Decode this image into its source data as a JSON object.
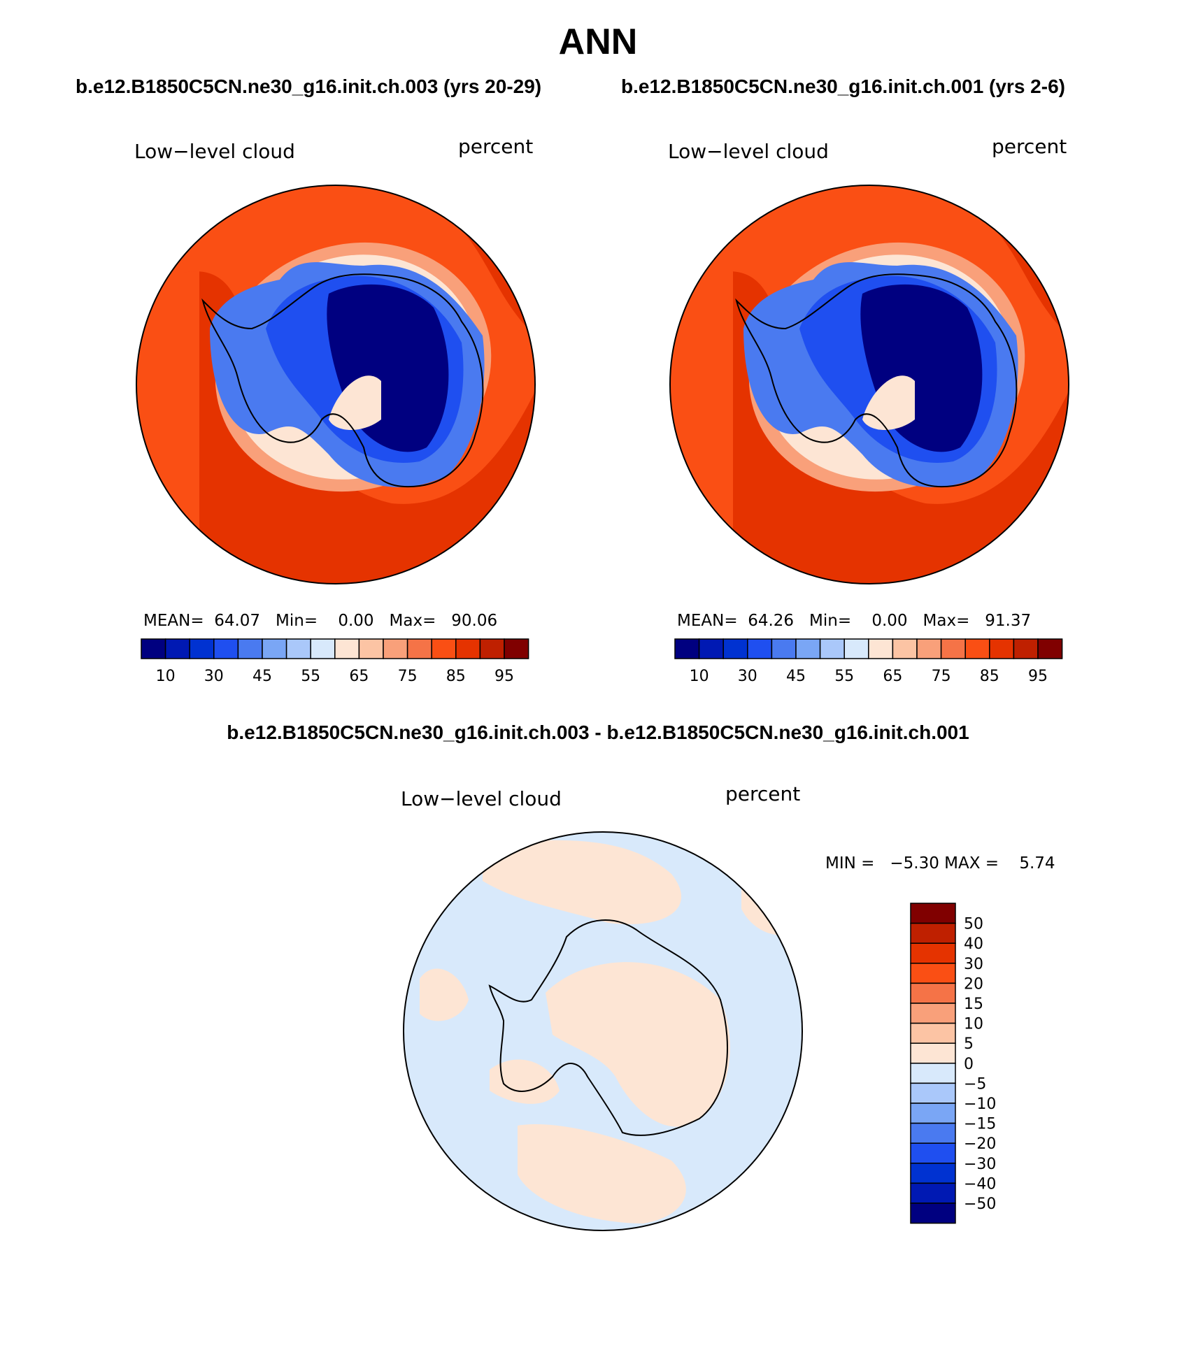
{
  "title": "ANN",
  "colors": {
    "abs_scale": [
      "#000080",
      "#0019b3",
      "#0032d1",
      "#1f4ff0",
      "#4a7af0",
      "#7aa6f5",
      "#aac8fa",
      "#d8e9fb",
      "#fde5d4",
      "#fcc4a4",
      "#f9a07a",
      "#f57347",
      "#fa4f14",
      "#e53300",
      "#bf2000",
      "#800000"
    ],
    "diff_scale": [
      "#000080",
      "#0019b3",
      "#0032d1",
      "#1f4ff0",
      "#4a7af0",
      "#7aa6f5",
      "#aac8fa",
      "#d8e9fb",
      "#fde5d4",
      "#fcc4a4",
      "#f9a07a",
      "#f57347",
      "#fa4f14",
      "#e53300",
      "#bf2000",
      "#800000"
    ]
  },
  "panels": [
    {
      "case_title": "b.e12.B1850C5CN.ne30_g16.init.ch.003 (yrs 20-29)",
      "var_label": "Low−level cloud",
      "units": "percent",
      "mean_label": "MEAN=",
      "mean": "64.07",
      "min_label": "Min=",
      "min": "0.00",
      "max_label": "Max=",
      "max": "90.06"
    },
    {
      "case_title": "b.e12.B1850C5CN.ne30_g16.init.ch.001 (yrs 2-6)",
      "var_label": "Low−level cloud",
      "units": "percent",
      "mean_label": "MEAN=",
      "mean": "64.26",
      "min_label": "Min=",
      "min": "0.00",
      "max_label": "Max=",
      "max": "91.37"
    }
  ],
  "colorbar_ticks": [
    "10",
    "30",
    "45",
    "55",
    "65",
    "75",
    "85",
    "95"
  ],
  "diff": {
    "title": "b.e12.B1850C5CN.ne30_g16.init.ch.003 - b.e12.B1850C5CN.ne30_g16.init.ch.001",
    "var_label": "Low−level cloud",
    "units": "percent",
    "min_label": "MIN =",
    "min": "−5.30",
    "max_label": "MAX =",
    "max": "5.74",
    "ticks": [
      "50",
      "40",
      "30",
      "20",
      "15",
      "10",
      "5",
      "0",
      "−5",
      "−10",
      "−15",
      "−20",
      "−30",
      "−40",
      "−50"
    ]
  },
  "chart_data": [
    {
      "type": "heatmap",
      "projection": "south polar stereographic",
      "variable": "Low−level cloud",
      "units": "percent",
      "case": "b.e12.B1850C5CN.ne30_g16.init.ch.003 (yrs 20-29)",
      "mean": 64.07,
      "min": 0.0,
      "max": 90.06,
      "contour_levels": [
        5,
        10,
        20,
        30,
        40,
        45,
        50,
        55,
        60,
        65,
        70,
        75,
        80,
        85,
        90,
        95
      ]
    },
    {
      "type": "heatmap",
      "projection": "south polar stereographic",
      "variable": "Low−level cloud",
      "units": "percent",
      "case": "b.e12.B1850C5CN.ne30_g16.init.ch.001 (yrs 2-6)",
      "mean": 64.26,
      "min": 0.0,
      "max": 91.37,
      "contour_levels": [
        5,
        10,
        20,
        30,
        40,
        45,
        50,
        55,
        60,
        65,
        70,
        75,
        80,
        85,
        90,
        95
      ]
    },
    {
      "type": "heatmap",
      "projection": "south polar stereographic",
      "variable": "Low−level cloud",
      "units": "percent",
      "case": "b.e12.B1850C5CN.ne30_g16.init.ch.003 - b.e12.B1850C5CN.ne30_g16.init.ch.001",
      "min": -5.3,
      "max": 5.74,
      "contour_levels": [
        -50,
        -40,
        -30,
        -20,
        -15,
        -10,
        -5,
        0,
        5,
        10,
        15,
        20,
        30,
        40,
        50
      ]
    }
  ]
}
